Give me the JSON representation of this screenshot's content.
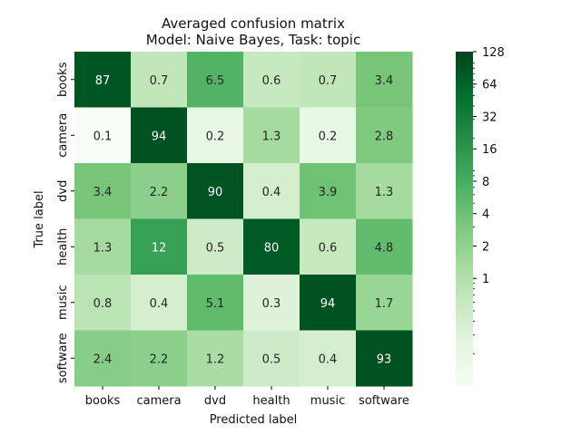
{
  "chart_data": {
    "type": "heatmap",
    "title": "Averaged confusion matrix",
    "subtitle": "Model: Naive Bayes, Task: topic",
    "xlabel": "Predicted label",
    "ylabel": "True label",
    "x_categories": [
      "books",
      "camera",
      "dvd",
      "health",
      "music",
      "software"
    ],
    "y_categories": [
      "books",
      "camera",
      "dvd",
      "health",
      "music",
      "software"
    ],
    "values": [
      [
        87,
        0.7,
        6.5,
        0.6,
        0.7,
        3.4
      ],
      [
        0.1,
        94,
        0.2,
        1.3,
        0.2,
        2.8
      ],
      [
        3.4,
        2.2,
        90,
        0.4,
        3.9,
        1.3
      ],
      [
        1.3,
        12,
        0.5,
        80,
        0.6,
        4.8
      ],
      [
        0.8,
        0.4,
        5.1,
        0.3,
        94,
        1.7
      ],
      [
        2.4,
        2.2,
        1.2,
        0.5,
        0.4,
        93
      ]
    ],
    "colorbar": {
      "scale": "log",
      "colormap": "Greens",
      "ticks": [
        1,
        2,
        4,
        8,
        16,
        32,
        64,
        128
      ],
      "vmax": 128
    }
  }
}
